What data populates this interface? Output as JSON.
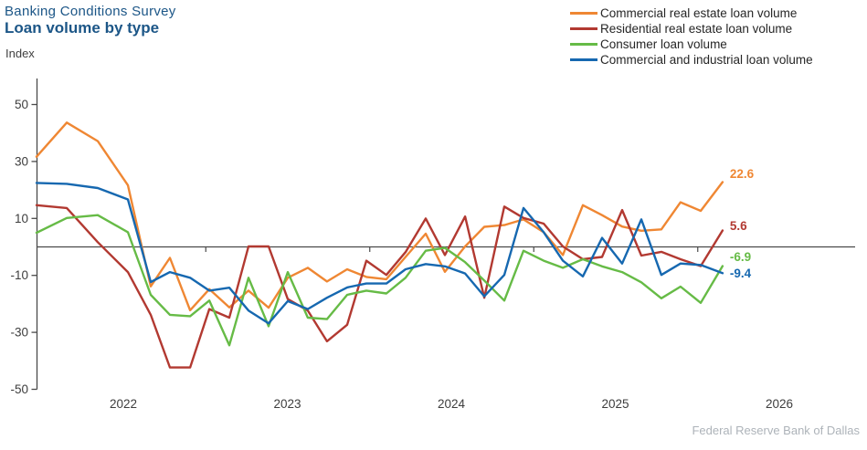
{
  "header": {
    "surtitle": "Banking Conditions Survey",
    "title": "Loan volume by type",
    "axis_unit_label": "Index"
  },
  "footer": {
    "source": "Federal Reserve Bank of Dallas"
  },
  "chart_data": {
    "type": "line",
    "title": "Loan volume by type",
    "subtitle": "Banking Conditions Survey",
    "ylabel": "Index",
    "ylim": [
      -50,
      55
    ],
    "yticks": [
      50,
      30,
      10,
      -10,
      -30,
      -50
    ],
    "xticks_years": [
      "2022",
      "2023",
      "2024",
      "2025",
      "2026"
    ],
    "midyear_ticks": [
      2022.5,
      2023.5,
      2024.5,
      2025.5
    ],
    "grid": "off",
    "zero_line": true,
    "legend_position": "top-right",
    "axis_color": "#4a4a4a",
    "tick_label_color": "#3d3d3d",
    "x": [
      2021.471,
      2021.655,
      2021.844,
      2022.028,
      2022.167,
      2022.284,
      2022.407,
      2022.524,
      2022.646,
      2022.763,
      2022.886,
      2023.003,
      2023.125,
      2023.242,
      2023.365,
      2023.482,
      2023.604,
      2023.721,
      2023.844,
      2023.961,
      2024.084,
      2024.201,
      2024.323,
      2024.44,
      2024.563,
      2024.68,
      2024.802,
      2024.919,
      2025.042,
      2025.159,
      2025.281,
      2025.398,
      2025.521,
      2025.654
    ],
    "series": [
      {
        "name": "Commercial real estate loan volume",
        "color": "#ef8733",
        "end_label": "22.6",
        "values": [
          31.5,
          43.5,
          37,
          21.5,
          -14,
          -4,
          -22.4,
          -15,
          -21.4,
          -15.5,
          -21.5,
          -11,
          -7.5,
          -12.3,
          -8,
          -10.7,
          -11.5,
          -3.7,
          4.5,
          -8.9,
          0,
          6.9,
          7.5,
          9.5,
          5,
          -3,
          14.5,
          11,
          7,
          5.5,
          6,
          15.5,
          12.5,
          22.6
        ]
      },
      {
        "name": "Residential real estate loan volume",
        "color": "#b23931",
        "end_label": "5.6",
        "values": [
          14.5,
          13.5,
          1.5,
          -9,
          -24,
          -42.5,
          -42.5,
          -22,
          -25,
          0,
          0,
          -18.5,
          -22.5,
          -33.3,
          -27.5,
          -5,
          -10,
          -2,
          9.8,
          -3,
          10.5,
          -18,
          14,
          10,
          8,
          0,
          -4.5,
          -3.7,
          12.8,
          -3.2,
          -1.9,
          -4.5,
          -6.9,
          5.6
        ]
      },
      {
        "name": "Consumer loan volume",
        "color": "#66bb46",
        "end_label": "-6.9",
        "values": [
          4.8,
          10,
          11,
          5,
          -17,
          -24,
          -24.5,
          -19,
          -34.7,
          -11,
          -28,
          -9,
          -25,
          -25.5,
          -17,
          -15.5,
          -16.5,
          -11,
          -1.5,
          -0.5,
          -5.5,
          -12,
          -19,
          -1.5,
          -5,
          -7.5,
          -4.5,
          -7,
          -9,
          -12.6,
          -18.2,
          -14.1,
          -19.8,
          -6.9
        ]
      },
      {
        "name": "Commercial and industrial loan volume",
        "color": "#1668b0",
        "end_label": "-9.4",
        "values": [
          22.3,
          22,
          20.5,
          16.5,
          -12.5,
          -9,
          -11,
          -15.5,
          -14.5,
          -22.5,
          -27,
          -19.2,
          -22,
          -18,
          -14.4,
          -13,
          -13,
          -8,
          -6.2,
          -7,
          -9.5,
          -17.5,
          -10,
          13.5,
          5,
          -5,
          -10.5,
          3,
          -6,
          9.5,
          -10,
          -6,
          -6.5,
          -9.4
        ]
      }
    ]
  }
}
